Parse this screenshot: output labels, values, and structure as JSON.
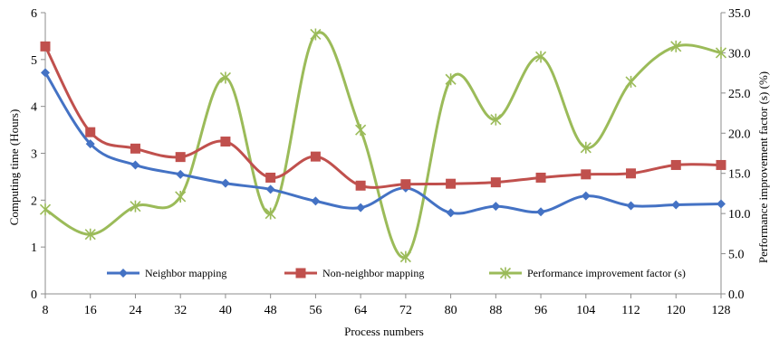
{
  "chart_data": {
    "type": "line",
    "x": [
      8,
      16,
      24,
      32,
      40,
      48,
      56,
      64,
      72,
      80,
      88,
      96,
      104,
      112,
      120,
      128
    ],
    "xlabel": "Process numbers",
    "ylabel": "Computing time (Hours)",
    "y2label": "Performance improvement factor (s) (%)",
    "ylim": [
      0,
      6
    ],
    "y2lim": [
      0,
      35
    ],
    "yticks": [
      "0",
      "1",
      "2",
      "3",
      "4",
      "5",
      "6"
    ],
    "y2ticks": [
      "0.0",
      "5.0",
      "10.0",
      "15.0",
      "20.0",
      "25.0",
      "30.0",
      "35.0"
    ],
    "xticks": [
      "8",
      "16",
      "24",
      "32",
      "40",
      "48",
      "56",
      "64",
      "72",
      "80",
      "88",
      "96",
      "104",
      "112",
      "120",
      "128"
    ],
    "grid": false,
    "legend_position": "bottom",
    "series": [
      {
        "name": "Neighbor mapping",
        "axis": "left",
        "marker": "diamond",
        "color": "#4472C4",
        "values": [
          4.72,
          3.2,
          2.75,
          2.55,
          2.36,
          2.23,
          1.98,
          1.84,
          2.26,
          1.73,
          1.87,
          1.75,
          2.09,
          1.88,
          1.9,
          1.92
        ]
      },
      {
        "name": "Non-neighbor mapping",
        "axis": "left",
        "marker": "square",
        "color": "#C0504D",
        "values": [
          5.28,
          3.45,
          3.1,
          2.92,
          3.25,
          2.48,
          2.93,
          2.31,
          2.34,
          2.35,
          2.38,
          2.48,
          2.55,
          2.57,
          2.75,
          2.75
        ]
      },
      {
        "name": "Performance improvement factor (s)",
        "axis": "right",
        "marker": "star",
        "color": "#9BBB59",
        "values": [
          10.5,
          7.4,
          10.9,
          12.1,
          26.9,
          10.0,
          32.3,
          20.4,
          4.6,
          26.7,
          21.7,
          29.5,
          18.2,
          26.4,
          30.8,
          30.0
        ]
      }
    ]
  }
}
